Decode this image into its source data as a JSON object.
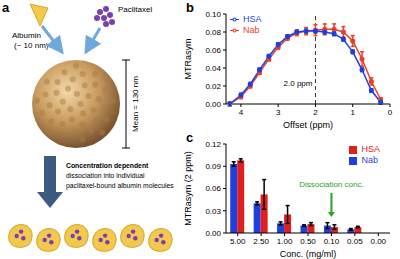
{
  "diagram": {
    "panel": "a",
    "albumin": [
      "Albumin",
      "(~ 10 nm)"
    ],
    "paclitaxel": "Paclitaxel",
    "size": "Mean = 130 nm",
    "caption": [
      "Concentration dependent",
      "dissociation into individual",
      "paclitaxel-bound albumin molecules"
    ]
  },
  "chart_data": [
    {
      "panel": "b",
      "type": "line",
      "x_label": "Offset (ppm)",
      "y_label": "MTRasym",
      "x": [
        4.3,
        4.0,
        3.75,
        3.5,
        3.25,
        3.0,
        2.75,
        2.5,
        2.25,
        2.0,
        1.75,
        1.5,
        1.25,
        1.0,
        0.75,
        0.5,
        0.25
      ],
      "series": [
        {
          "name": "Nab",
          "color": "#e8402a",
          "marker": "circle",
          "line_style": "solid",
          "values": [
            0.0,
            0.008,
            0.02,
            0.035,
            0.05,
            0.063,
            0.073,
            0.079,
            0.081,
            0.082,
            0.083,
            0.083,
            0.08,
            0.07,
            0.05,
            0.025,
            0.005
          ],
          "errors": [
            0.002,
            0.002,
            0.002,
            0.002,
            0.002,
            0.002,
            0.002,
            0.003,
            0.004,
            0.006,
            0.006,
            0.006,
            0.006,
            0.006,
            0.008,
            0.004,
            0.002
          ]
        },
        {
          "name": "HSA",
          "color": "#1f3fe0",
          "marker": "circle",
          "line_style": "solid",
          "values": [
            0.0,
            0.01,
            0.022,
            0.038,
            0.053,
            0.066,
            0.075,
            0.08,
            0.081,
            0.081,
            0.08,
            0.078,
            0.072,
            0.058,
            0.038,
            0.015,
            0.002
          ],
          "errors": [
            0.002,
            0.002,
            0.002,
            0.002,
            0.002,
            0.002,
            0.002,
            0.002,
            0.002,
            0.002,
            0.002,
            0.002,
            0.002,
            0.002,
            0.002,
            0.002,
            0.002
          ]
        }
      ],
      "xlim": [
        4.4,
        0
      ],
      "xticks": [
        4,
        3,
        2,
        1,
        0
      ],
      "ylim": [
        0,
        0.1
      ],
      "yticks": [
        {
          "value": 0,
          "label": "0.00"
        },
        {
          "value": 0.02,
          "label": "0.02"
        },
        {
          "value": 0.04,
          "label": "0.04"
        },
        {
          "value": 0.06,
          "label": "0.06"
        },
        {
          "value": 0.08,
          "label": "0.08"
        },
        {
          "value": 0.1,
          "label": "0.10"
        }
      ],
      "annotations": [
        {
          "x": 2.0,
          "text": "2.0 ppm",
          "line_style": "dashed"
        }
      ],
      "legend": "top left",
      "grid": false
    },
    {
      "panel": "c",
      "type": "bar",
      "x_label": "Conc. (mg/ml)",
      "y_label": "MTRasym (2 ppm)",
      "categories": [
        "5.00",
        "2.50",
        "1.00",
        "0.50",
        "0.10",
        "0.05",
        "0.00"
      ],
      "series": [
        {
          "name": "Nab",
          "color": "#1f3fe0",
          "values": [
            0.093,
            0.04,
            0.013,
            0.01,
            0.01,
            0.005,
            0.0
          ],
          "errors": [
            0.003,
            0.002,
            0.002,
            0.001,
            0.004,
            0.001,
            0.0
          ]
        },
        {
          "name": "HSA",
          "color": "#e02020",
          "values": [
            0.098,
            0.052,
            0.025,
            0.012,
            0.008,
            0.008,
            0.0
          ],
          "errors": [
            0.002,
            0.02,
            0.012,
            0.002,
            0.003,
            0.001,
            0.0
          ]
        }
      ],
      "ylim": [
        0,
        0.12
      ],
      "yticks": [
        {
          "value": 0,
          "label": "0.00"
        },
        {
          "value": 0.03,
          "label": "0.03"
        },
        {
          "value": 0.06,
          "label": "0.06"
        },
        {
          "value": 0.09,
          "label": "0.09"
        },
        {
          "value": 0.12,
          "label": "0.12"
        }
      ],
      "annotations": [
        {
          "category": "0.10",
          "text": "Dissociation conc.",
          "color": "#2ca02c"
        }
      ],
      "legend": "top right",
      "grid": false
    }
  ]
}
